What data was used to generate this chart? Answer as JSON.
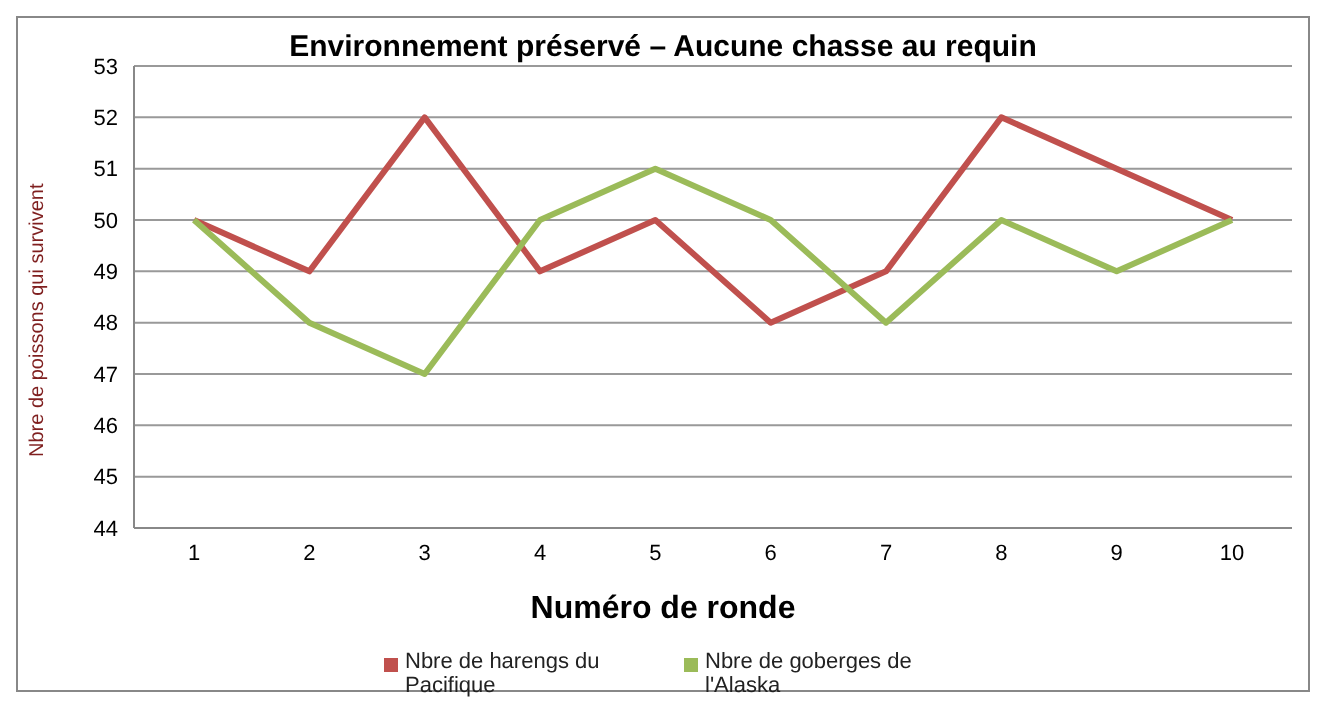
{
  "chart_data": {
    "type": "line",
    "title": "Environnement préservé – Aucune chasse au requin",
    "xlabel": "Numéro de ronde",
    "ylabel": "Nbre de poissons qui survivent",
    "categories": [
      "1",
      "2",
      "3",
      "4",
      "5",
      "6",
      "7",
      "8",
      "9",
      "10"
    ],
    "series": [
      {
        "name": "Nbre de harengs du Pacifique",
        "color": "#c0504d",
        "values": [
          50,
          49,
          52,
          49,
          50,
          48,
          49,
          52,
          51,
          50
        ]
      },
      {
        "name": "Nbre de goberges de l'Alaska",
        "color": "#9bbb59",
        "values": [
          50,
          48,
          47,
          50,
          51,
          50,
          48,
          50,
          49,
          50
        ]
      }
    ],
    "ylim": [
      44,
      53
    ],
    "yticks": [
      44,
      45,
      46,
      47,
      48,
      49,
      50,
      51,
      52,
      53
    ],
    "grid": "y",
    "legend": "bottom",
    "marker": "none",
    "line_style": "solid"
  }
}
